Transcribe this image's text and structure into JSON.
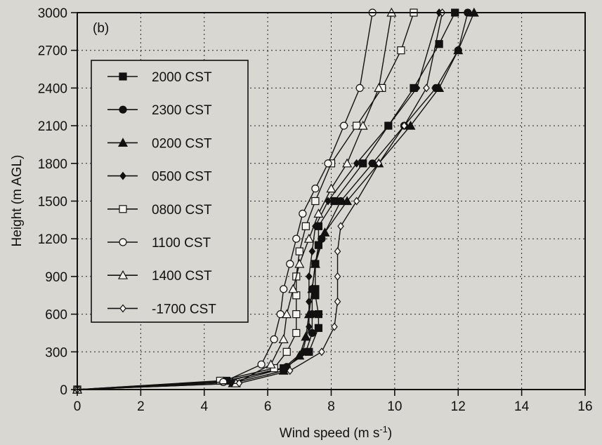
{
  "chart_data": {
    "type": "line",
    "panel_label": "(b)",
    "xlabel": "Wind speed (m s⁻¹)",
    "xlabel_main": "Wind speed (m s",
    "xlabel_sup": "-1",
    "xlabel_close": ")",
    "ylabel": "Height (m AGL)",
    "xlim": [
      0,
      16
    ],
    "ylim": [
      0,
      3000
    ],
    "xticks": [
      0,
      2,
      4,
      6,
      8,
      10,
      12,
      14,
      16
    ],
    "yticks": [
      0,
      300,
      600,
      900,
      1200,
      1500,
      1800,
      2100,
      2400,
      2700,
      3000
    ],
    "grid": true,
    "legend_position": "top-left",
    "x_axis": "wind speed",
    "y_axis": "height",
    "series": [
      {
        "name": "2000 CST",
        "marker": "square-filled",
        "x": [
          0,
          4.7,
          6.5,
          7.3,
          7.6,
          7.6,
          7.5,
          7.5,
          7.5,
          7.6,
          7.6,
          8.1,
          9.0,
          9.8,
          10.6,
          11.4,
          11.9
        ],
        "y": [
          0,
          70,
          170,
          300,
          490,
          600,
          750,
          800,
          1000,
          1150,
          1300,
          1500,
          1800,
          2100,
          2400,
          2750,
          3000
        ]
      },
      {
        "name": "2300 CST",
        "marker": "circle-filled",
        "x": [
          0,
          4.6,
          6.6,
          7.2,
          7.4,
          7.4,
          7.4,
          7.5,
          7.7,
          8.3,
          9.3,
          10.3,
          11.3,
          12.0,
          12.3
        ],
        "y": [
          0,
          60,
          180,
          300,
          450,
          600,
          800,
          1000,
          1200,
          1500,
          1800,
          2100,
          2400,
          2700,
          3000
        ]
      },
      {
        "name": "0200 CST",
        "marker": "triangle-filled",
        "x": [
          0,
          4.9,
          6.5,
          7.0,
          7.2,
          7.3,
          7.4,
          7.5,
          7.8,
          8.5,
          9.5,
          10.5,
          11.4,
          12.0,
          12.5
        ],
        "y": [
          0,
          50,
          150,
          270,
          420,
          600,
          800,
          1000,
          1250,
          1500,
          1800,
          2100,
          2400,
          2700,
          3000
        ]
      },
      {
        "name": "0500 CST",
        "marker": "diamond-filled",
        "x": [
          0,
          4.9,
          6.5,
          7.1,
          7.3,
          7.3,
          7.3,
          7.4,
          7.5,
          7.9,
          8.8,
          9.8,
          10.7,
          11.4
        ],
        "y": [
          0,
          60,
          170,
          300,
          500,
          700,
          900,
          1100,
          1300,
          1500,
          1800,
          2100,
          2400,
          3000
        ]
      },
      {
        "name": "0800 CST",
        "marker": "square-open",
        "x": [
          0,
          4.5,
          6.2,
          6.6,
          6.9,
          6.9,
          6.9,
          6.9,
          7.0,
          7.2,
          7.5,
          8.0,
          8.8,
          9.6,
          10.2,
          10.6
        ],
        "y": [
          0,
          70,
          170,
          300,
          450,
          600,
          750,
          900,
          1100,
          1300,
          1500,
          1800,
          2100,
          2400,
          2700,
          3000
        ]
      },
      {
        "name": "1100 CST",
        "marker": "circle-open",
        "x": [
          0,
          4.6,
          5.8,
          6.2,
          6.4,
          6.5,
          6.7,
          6.9,
          7.1,
          7.5,
          7.9,
          8.4,
          8.9,
          9.3
        ],
        "y": [
          0,
          60,
          200,
          400,
          600,
          800,
          1000,
          1200,
          1400,
          1600,
          1800,
          2100,
          2400,
          3000
        ]
      },
      {
        "name": "1400 CST",
        "marker": "triangle-open",
        "x": [
          0,
          5.0,
          6.1,
          6.5,
          6.6,
          6.8,
          7.0,
          7.3,
          7.6,
          8.0,
          8.5,
          9.0,
          9.5,
          9.9
        ],
        "y": [
          0,
          50,
          200,
          400,
          600,
          800,
          1000,
          1200,
          1400,
          1600,
          1800,
          2100,
          2400,
          3000
        ]
      },
      {
        "name": "1700 CST",
        "marker": "diamond-open",
        "legend_label": "-1700 CST",
        "x": [
          0,
          5.1,
          6.7,
          7.7,
          8.1,
          8.2,
          8.2,
          8.2,
          8.3,
          8.8,
          9.5,
          10.3,
          11.0,
          11.5
        ],
        "y": [
          0,
          50,
          150,
          300,
          500,
          700,
          900,
          1100,
          1300,
          1500,
          1800,
          2100,
          2400,
          3000
        ]
      }
    ]
  }
}
